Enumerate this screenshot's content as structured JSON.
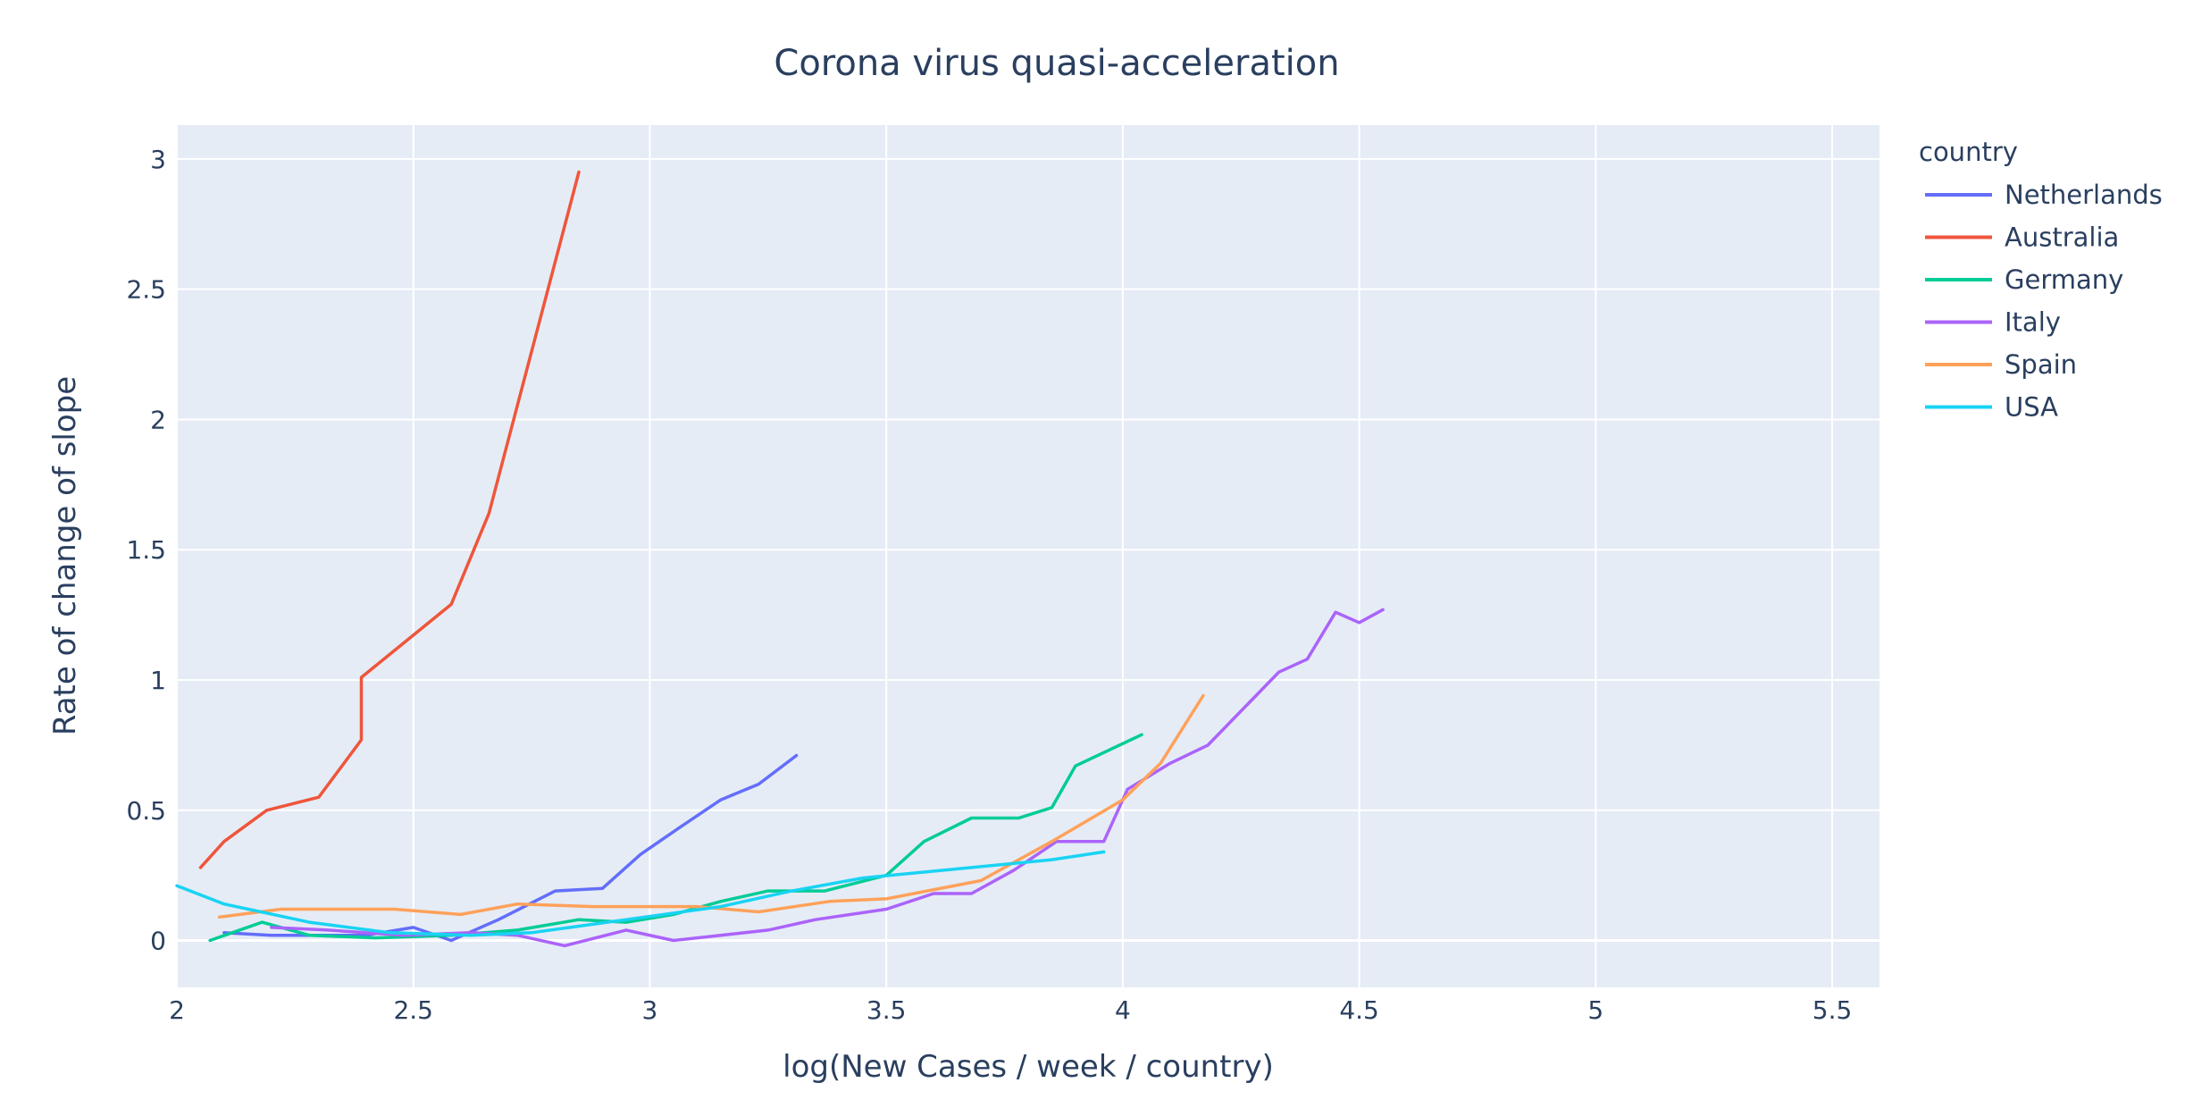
{
  "chart_data": {
    "type": "line",
    "title": "Corona virus quasi-acceleration",
    "xlabel": "log(New Cases / week / country)",
    "ylabel": "Rate of change of slope",
    "xlim": [
      2,
      5.6
    ],
    "ylim": [
      -0.18,
      3.13
    ],
    "x_ticks": [
      2,
      2.5,
      3,
      3.5,
      4,
      4.5,
      5,
      5.5
    ],
    "x_tick_labels": [
      "2",
      "2.5",
      "3",
      "3.5",
      "4",
      "4.5",
      "5",
      "5.5"
    ],
    "y_ticks": [
      0,
      0.5,
      1,
      1.5,
      2,
      2.5,
      3
    ],
    "y_tick_labels": [
      "0",
      "0.5",
      "1",
      "1.5",
      "2",
      "2.5",
      "3"
    ],
    "grid": true,
    "legend_title": "country",
    "legend_position": "right",
    "plot_bgcolor": "#e5ecf6",
    "series": [
      {
        "name": "Netherlands",
        "color": "#636efa",
        "points": [
          [
            2.1,
            0.03
          ],
          [
            2.2,
            0.02
          ],
          [
            2.3,
            0.02
          ],
          [
            2.4,
            0.02
          ],
          [
            2.5,
            0.05
          ],
          [
            2.58,
            0.0
          ],
          [
            2.68,
            0.08
          ],
          [
            2.8,
            0.19
          ],
          [
            2.9,
            0.2
          ],
          [
            2.98,
            0.33
          ],
          [
            3.06,
            0.43
          ],
          [
            3.15,
            0.54
          ],
          [
            3.23,
            0.6
          ],
          [
            3.31,
            0.71
          ]
        ]
      },
      {
        "name": "Australia",
        "color": "#ef553b",
        "points": [
          [
            2.05,
            0.28
          ],
          [
            2.1,
            0.38
          ],
          [
            2.19,
            0.5
          ],
          [
            2.3,
            0.55
          ],
          [
            2.39,
            0.77
          ],
          [
            2.39,
            1.01
          ],
          [
            2.58,
            1.29
          ],
          [
            2.66,
            1.64
          ],
          [
            2.85,
            2.95
          ]
        ]
      },
      {
        "name": "Germany",
        "color": "#00cc96",
        "points": [
          [
            2.07,
            0.0
          ],
          [
            2.18,
            0.07
          ],
          [
            2.28,
            0.02
          ],
          [
            2.42,
            0.01
          ],
          [
            2.58,
            0.02
          ],
          [
            2.72,
            0.04
          ],
          [
            2.85,
            0.08
          ],
          [
            2.95,
            0.07
          ],
          [
            3.05,
            0.1
          ],
          [
            3.15,
            0.15
          ],
          [
            3.25,
            0.19
          ],
          [
            3.37,
            0.19
          ],
          [
            3.5,
            0.25
          ],
          [
            3.58,
            0.38
          ],
          [
            3.68,
            0.47
          ],
          [
            3.78,
            0.47
          ],
          [
            3.85,
            0.51
          ],
          [
            3.9,
            0.67
          ],
          [
            4.04,
            0.79
          ]
        ]
      },
      {
        "name": "Italy",
        "color": "#ab63fa",
        "points": [
          [
            2.2,
            0.05
          ],
          [
            2.32,
            0.04
          ],
          [
            2.48,
            0.02
          ],
          [
            2.62,
            0.03
          ],
          [
            2.72,
            0.02
          ],
          [
            2.82,
            -0.02
          ],
          [
            2.95,
            0.04
          ],
          [
            3.05,
            0.0
          ],
          [
            3.15,
            0.02
          ],
          [
            3.25,
            0.04
          ],
          [
            3.35,
            0.08
          ],
          [
            3.5,
            0.12
          ],
          [
            3.6,
            0.18
          ],
          [
            3.68,
            0.18
          ],
          [
            3.77,
            0.27
          ],
          [
            3.86,
            0.38
          ],
          [
            3.96,
            0.38
          ],
          [
            4.01,
            0.58
          ],
          [
            4.1,
            0.68
          ],
          [
            4.18,
            0.75
          ],
          [
            4.33,
            1.03
          ],
          [
            4.39,
            1.08
          ],
          [
            4.45,
            1.26
          ],
          [
            4.5,
            1.22
          ],
          [
            4.55,
            1.27
          ]
        ]
      },
      {
        "name": "Spain",
        "color": "#ffa15a",
        "points": [
          [
            2.09,
            0.09
          ],
          [
            2.22,
            0.12
          ],
          [
            2.36,
            0.12
          ],
          [
            2.46,
            0.12
          ],
          [
            2.6,
            0.1
          ],
          [
            2.72,
            0.14
          ],
          [
            2.88,
            0.13
          ],
          [
            3.1,
            0.13
          ],
          [
            3.23,
            0.11
          ],
          [
            3.38,
            0.15
          ],
          [
            3.5,
            0.16
          ],
          [
            3.7,
            0.23
          ],
          [
            3.85,
            0.38
          ],
          [
            4.0,
            0.54
          ],
          [
            4.08,
            0.68
          ],
          [
            4.17,
            0.94
          ]
        ]
      },
      {
        "name": "USA",
        "color": "#19d3f3",
        "points": [
          [
            2.0,
            0.21
          ],
          [
            2.1,
            0.14
          ],
          [
            2.28,
            0.07
          ],
          [
            2.45,
            0.03
          ],
          [
            2.62,
            0.02
          ],
          [
            2.75,
            0.03
          ],
          [
            2.95,
            0.08
          ],
          [
            3.15,
            0.13
          ],
          [
            3.3,
            0.19
          ],
          [
            3.45,
            0.24
          ],
          [
            3.68,
            0.28
          ],
          [
            3.85,
            0.31
          ],
          [
            3.96,
            0.34
          ]
        ]
      }
    ]
  }
}
